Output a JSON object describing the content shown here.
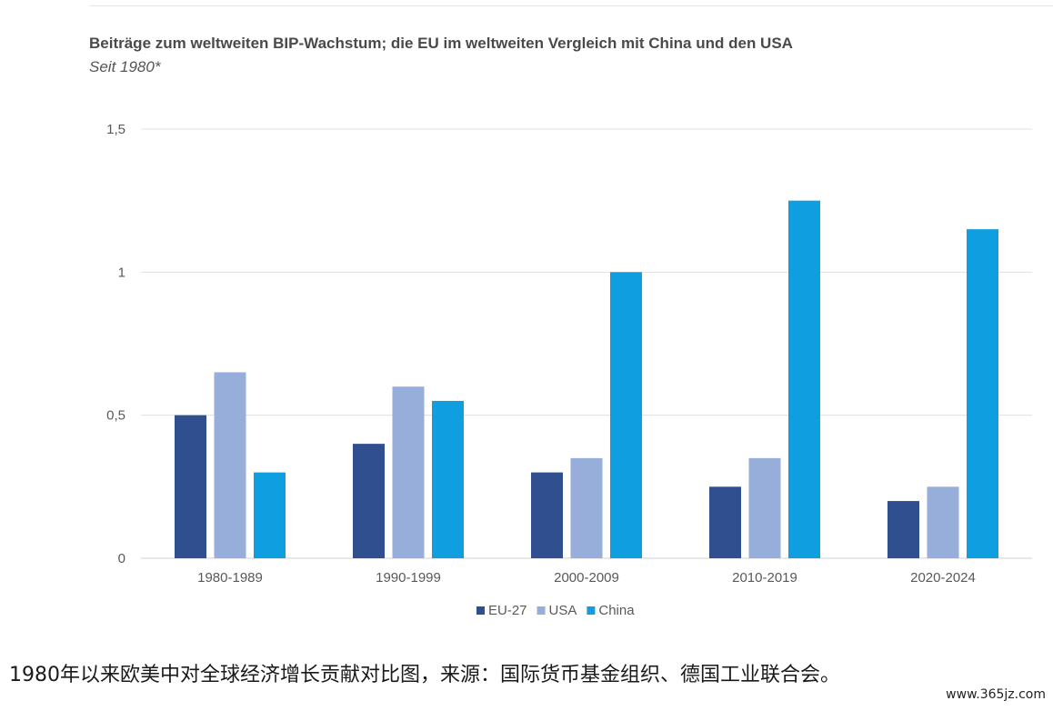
{
  "chart_data": {
    "type": "bar",
    "title": "Beiträge zum weltweiten BIP-Wachstum; die EU im weltweiten Vergleich mit China und den USA",
    "subtitle": "Seit 1980*",
    "categories": [
      "1980-1989",
      "1990-1999",
      "2000-2009",
      "2010-2019",
      "2020-2024"
    ],
    "series": [
      {
        "name": "EU-27",
        "color": "#2f4f8f",
        "values": [
          0.5,
          0.4,
          0.3,
          0.25,
          0.2
        ]
      },
      {
        "name": "USA",
        "color": "#97aedb",
        "values": [
          0.65,
          0.6,
          0.35,
          0.35,
          0.25
        ]
      },
      {
        "name": "China",
        "color": "#0f9ee0",
        "values": [
          0.3,
          0.55,
          1.0,
          1.25,
          1.15
        ]
      }
    ],
    "yticks": [
      {
        "value": 0,
        "label": "0"
      },
      {
        "value": 0.5,
        "label": "0,5"
      },
      {
        "value": 1,
        "label": "1"
      },
      {
        "value": 1.5,
        "label": "1,5"
      }
    ],
    "ylim": [
      0,
      1.5
    ],
    "grid": true,
    "legend": "bottom-center",
    "xlabel": "",
    "ylabel": ""
  },
  "caption": "1980年以来欧美中对全球经济增长贡献对比图，来源：国际货币基金组织、德国工业联合会。",
  "watermark": "www.365jz.com"
}
